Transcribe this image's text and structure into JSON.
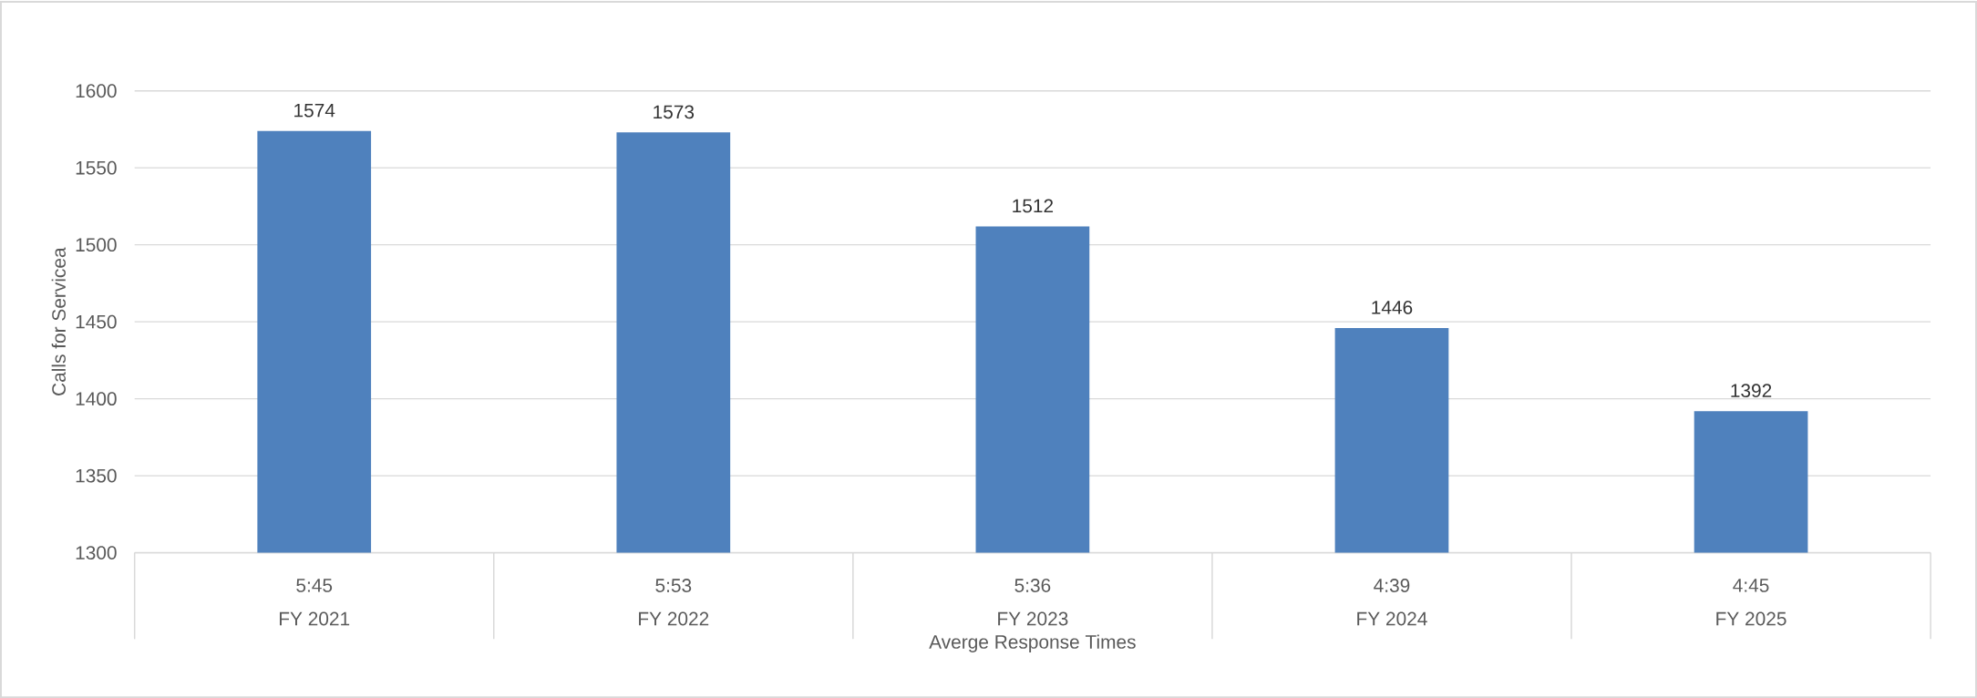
{
  "chart_data": {
    "type": "bar",
    "categories": [
      "FY 2021",
      "FY 2022",
      "FY 2023",
      "FY 2024",
      "FY 2025"
    ],
    "values": [
      1574,
      1573,
      1512,
      1446,
      1392
    ],
    "color": "#4f81bd",
    "ylim": [
      1300,
      1600
    ],
    "yticks": [
      1300,
      1350,
      1400,
      1450,
      1500,
      1550,
      1600
    ],
    "grid": "y",
    "data_labels": true,
    "xlabel": "Averge Response Times",
    "ylabel": "Calls for Servicea",
    "annotations": [
      "5:45",
      "5:53",
      "5:36",
      "4:39",
      "4:45"
    ]
  }
}
